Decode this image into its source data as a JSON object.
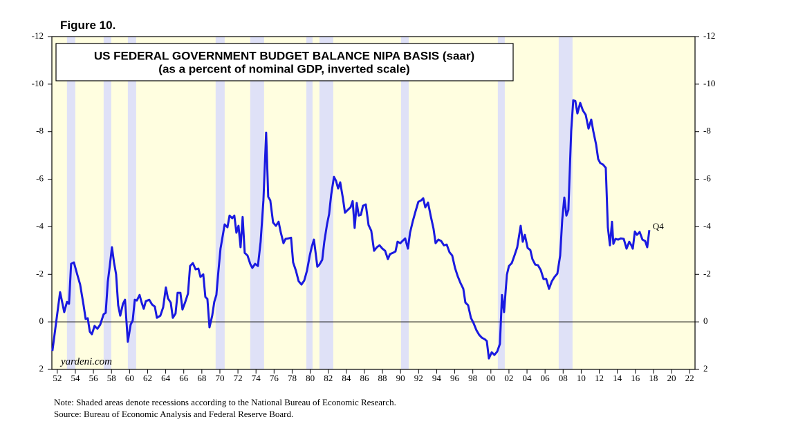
{
  "chart_data": {
    "type": "line",
    "figure_label": "Figure 10.",
    "title": "US FEDERAL GOVERNMENT BUDGET BALANCE NIPA BASIS (saar)",
    "subtitle": "(as a percent of nominal GDP, inverted scale)",
    "watermark": "yardeni.com",
    "annotation": "Q4",
    "notes": [
      "Note: Shaded areas denote recessions according to the National Bureau of Economic Research.",
      "Source: Bureau of Economic Analysis and Federal Reserve Board."
    ],
    "color": "#1a1ae0",
    "background": "#fffee0",
    "recession_color": "#dfe1f7",
    "inverted": true,
    "right_axis": true,
    "xlim": [
      1951.4,
      2022.6
    ],
    "ylim": [
      -12,
      2
    ],
    "yticks": [
      -12,
      -10,
      -8,
      -6,
      -4,
      -2,
      0,
      2
    ],
    "xticks": [
      {
        "value": 1952,
        "label": "52"
      },
      {
        "value": 1954,
        "label": "54"
      },
      {
        "value": 1956,
        "label": "56"
      },
      {
        "value": 1958,
        "label": "58"
      },
      {
        "value": 1960,
        "label": "60"
      },
      {
        "value": 1962,
        "label": "62"
      },
      {
        "value": 1964,
        "label": "64"
      },
      {
        "value": 1966,
        "label": "66"
      },
      {
        "value": 1968,
        "label": "68"
      },
      {
        "value": 1970,
        "label": "70"
      },
      {
        "value": 1972,
        "label": "72"
      },
      {
        "value": 1974,
        "label": "74"
      },
      {
        "value": 1976,
        "label": "76"
      },
      {
        "value": 1978,
        "label": "78"
      },
      {
        "value": 1980,
        "label": "80"
      },
      {
        "value": 1982,
        "label": "82"
      },
      {
        "value": 1984,
        "label": "84"
      },
      {
        "value": 1986,
        "label": "86"
      },
      {
        "value": 1988,
        "label": "88"
      },
      {
        "value": 1990,
        "label": "90"
      },
      {
        "value": 1992,
        "label": "92"
      },
      {
        "value": 1994,
        "label": "94"
      },
      {
        "value": 1996,
        "label": "96"
      },
      {
        "value": 1998,
        "label": "98"
      },
      {
        "value": 2000,
        "label": "00"
      },
      {
        "value": 2002,
        "label": "02"
      },
      {
        "value": 2004,
        "label": "04"
      },
      {
        "value": 2006,
        "label": "06"
      },
      {
        "value": 2008,
        "label": "08"
      },
      {
        "value": 2010,
        "label": "10"
      },
      {
        "value": 2012,
        "label": "12"
      },
      {
        "value": 2014,
        "label": "14"
      },
      {
        "value": 2016,
        "label": "16"
      },
      {
        "value": 2018,
        "label": "18"
      },
      {
        "value": 2020,
        "label": "20"
      },
      {
        "value": 2022,
        "label": "22"
      }
    ],
    "recessions": [
      [
        1953.07,
        1953.99
      ],
      [
        1957.13,
        1957.97
      ],
      [
        1959.81,
        1960.73
      ],
      [
        1969.53,
        1970.53
      ],
      [
        1973.36,
        1974.89
      ],
      [
        1979.57,
        1980.26
      ],
      [
        1981.02,
        1982.55
      ],
      [
        1990.05,
        1990.9
      ],
      [
        2000.77,
        2001.54
      ],
      [
        2007.51,
        2009.04
      ]
    ],
    "x": [
      1951.46,
      1952.31,
      1952.77,
      1953.07,
      1953.3,
      1953.53,
      1953.84,
      1954.22,
      1954.53,
      1954.91,
      1955.14,
      1955.37,
      1955.6,
      1955.83,
      1956.13,
      1956.44,
      1956.75,
      1957.13,
      1957.36,
      1957.59,
      1957.82,
      1958.05,
      1958.28,
      1958.51,
      1958.74,
      1958.97,
      1959.27,
      1959.5,
      1959.81,
      1960.12,
      1960.35,
      1960.58,
      1960.81,
      1961.11,
      1961.34,
      1961.57,
      1961.8,
      1962.18,
      1962.49,
      1962.8,
      1963.03,
      1963.41,
      1963.72,
      1964.02,
      1964.25,
      1964.56,
      1964.79,
      1965.09,
      1965.32,
      1965.63,
      1965.86,
      1966.17,
      1966.47,
      1966.7,
      1967.01,
      1967.31,
      1967.62,
      1967.85,
      1968.16,
      1968.39,
      1968.62,
      1968.85,
      1969.15,
      1969.38,
      1969.61,
      1969.84,
      1970.07,
      1970.53,
      1970.84,
      1971.07,
      1971.37,
      1971.6,
      1971.83,
      1972.06,
      1972.29,
      1972.52,
      1972.75,
      1973.06,
      1973.36,
      1973.59,
      1973.9,
      1974.21,
      1974.51,
      1974.82,
      1975.12,
      1975.35,
      1975.58,
      1975.89,
      1976.2,
      1976.5,
      1976.73,
      1977.04,
      1977.27,
      1977.57,
      1977.88,
      1978.11,
      1978.42,
      1978.72,
      1979.03,
      1979.34,
      1979.64,
      1979.95,
      1980.18,
      1980.41,
      1980.56,
      1980.79,
      1981.02,
      1981.33,
      1981.56,
      1981.86,
      1982.09,
      1982.32,
      1982.63,
      1982.86,
      1983.09,
      1983.32,
      1983.62,
      1983.85,
      1984.16,
      1984.47,
      1984.7,
      1984.92,
      1985.15,
      1985.38,
      1985.61,
      1985.84,
      1986.15,
      1986.46,
      1986.76,
      1987.07,
      1987.38,
      1987.68,
      1987.99,
      1988.29,
      1988.6,
      1988.83,
      1989.14,
      1989.44,
      1989.67,
      1989.98,
      1990.21,
      1990.51,
      1990.82,
      1991.05,
      1991.36,
      1991.66,
      1991.97,
      1992.28,
      1992.51,
      1992.74,
      1993.04,
      1993.35,
      1993.65,
      1993.88,
      1994.19,
      1994.5,
      1994.8,
      1995.11,
      1995.42,
      1995.72,
      1996.03,
      1996.33,
      1996.64,
      1996.95,
      1997.18,
      1997.48,
      1997.79,
      1998.09,
      1998.4,
      1998.71,
      1999.01,
      1999.32,
      1999.55,
      1999.78,
      2000.09,
      2000.39,
      2000.7,
      2001.0,
      2001.23,
      2001.46,
      2001.77,
      2002.0,
      2002.31,
      2002.61,
      2002.92,
      2003.3,
      2003.53,
      2003.76,
      2004.07,
      2004.37,
      2004.6,
      2004.91,
      2005.22,
      2005.52,
      2005.83,
      2006.13,
      2006.44,
      2006.75,
      2007.05,
      2007.36,
      2007.67,
      2007.9,
      2008.13,
      2008.36,
      2008.58,
      2008.89,
      2009.12,
      2009.35,
      2009.58,
      2009.89,
      2010.19,
      2010.5,
      2010.81,
      2011.11,
      2011.34,
      2011.65,
      2011.88,
      2012.11,
      2012.41,
      2012.72,
      2012.95,
      2013.18,
      2013.41,
      2013.56,
      2013.79,
      2014.1,
      2014.4,
      2014.71,
      2015.02,
      2015.32,
      2015.55,
      2015.71,
      2015.94,
      2016.17,
      2016.47,
      2016.78,
      2017.08,
      2017.31,
      2017.54
    ],
    "values": [
      1.22,
      -1.25,
      -0.41,
      -0.84,
      -0.76,
      -2.44,
      -2.5,
      -1.98,
      -1.57,
      -0.7,
      -0.12,
      -0.15,
      0.41,
      0.52,
      0.17,
      0.29,
      0.12,
      -0.32,
      -0.38,
      -1.68,
      -2.38,
      -3.14,
      -2.5,
      -2.0,
      -0.7,
      -0.26,
      -0.76,
      -0.93,
      0.84,
      0.12,
      -0.06,
      -0.93,
      -0.9,
      -1.13,
      -0.81,
      -0.55,
      -0.87,
      -0.93,
      -0.73,
      -0.64,
      -0.17,
      -0.26,
      -0.61,
      -1.45,
      -0.99,
      -0.81,
      -0.17,
      -0.35,
      -1.22,
      -1.22,
      -0.52,
      -0.84,
      -1.19,
      -2.35,
      -2.47,
      -2.21,
      -2.24,
      -1.89,
      -2.0,
      -1.05,
      -0.96,
      0.23,
      -0.26,
      -0.84,
      -1.13,
      -2.15,
      -3.08,
      -4.1,
      -3.98,
      -4.47,
      -4.36,
      -4.47,
      -3.75,
      -4.04,
      -3.14,
      -4.41,
      -2.9,
      -2.79,
      -2.44,
      -2.27,
      -2.44,
      -2.35,
      -3.37,
      -5.11,
      -7.96,
      -5.26,
      -5.11,
      -4.18,
      -4.04,
      -4.21,
      -3.78,
      -3.31,
      -3.49,
      -3.51,
      -3.54,
      -2.5,
      -2.15,
      -1.71,
      -1.57,
      -1.74,
      -2.15,
      -2.79,
      -3.17,
      -3.46,
      -3.02,
      -2.32,
      -2.41,
      -2.61,
      -3.37,
      -4.1,
      -4.53,
      -5.34,
      -6.1,
      -5.93,
      -5.61,
      -5.87,
      -5.2,
      -4.59,
      -4.71,
      -4.82,
      -5.08,
      -3.95,
      -5.0,
      -4.47,
      -4.5,
      -4.88,
      -4.94,
      -4.07,
      -3.83,
      -2.99,
      -3.14,
      -3.22,
      -3.08,
      -2.99,
      -2.64,
      -2.85,
      -2.9,
      -2.96,
      -3.37,
      -3.31,
      -3.4,
      -3.51,
      -3.08,
      -3.75,
      -4.24,
      -4.65,
      -5.05,
      -5.11,
      -5.2,
      -4.82,
      -5.02,
      -4.44,
      -3.92,
      -3.31,
      -3.46,
      -3.4,
      -3.22,
      -3.25,
      -2.93,
      -2.79,
      -2.27,
      -1.92,
      -1.63,
      -1.39,
      -0.81,
      -0.7,
      -0.17,
      0.06,
      0.35,
      0.55,
      0.67,
      0.73,
      0.81,
      1.54,
      1.28,
      1.39,
      1.25,
      0.93,
      -1.13,
      -0.41,
      -1.98,
      -2.35,
      -2.47,
      -2.79,
      -3.14,
      -4.04,
      -3.37,
      -3.66,
      -3.11,
      -3.02,
      -2.64,
      -2.41,
      -2.38,
      -2.18,
      -1.8,
      -1.8,
      -1.39,
      -1.71,
      -1.89,
      -2.03,
      -2.79,
      -4.3,
      -5.23,
      -4.47,
      -4.71,
      -8.02,
      -9.32,
      -9.29,
      -8.77,
      -9.21,
      -8.89,
      -8.71,
      -8.13,
      -8.51,
      -8.02,
      -7.46,
      -6.85,
      -6.68,
      -6.62,
      -6.48,
      -3.98,
      -3.22,
      -4.21,
      -3.28,
      -3.49,
      -3.46,
      -3.51,
      -3.49,
      -3.08,
      -3.37,
      -3.22,
      -3.08,
      -3.8,
      -3.66,
      -3.78,
      -3.46,
      -3.4,
      -3.14,
      -3.86
    ]
  }
}
